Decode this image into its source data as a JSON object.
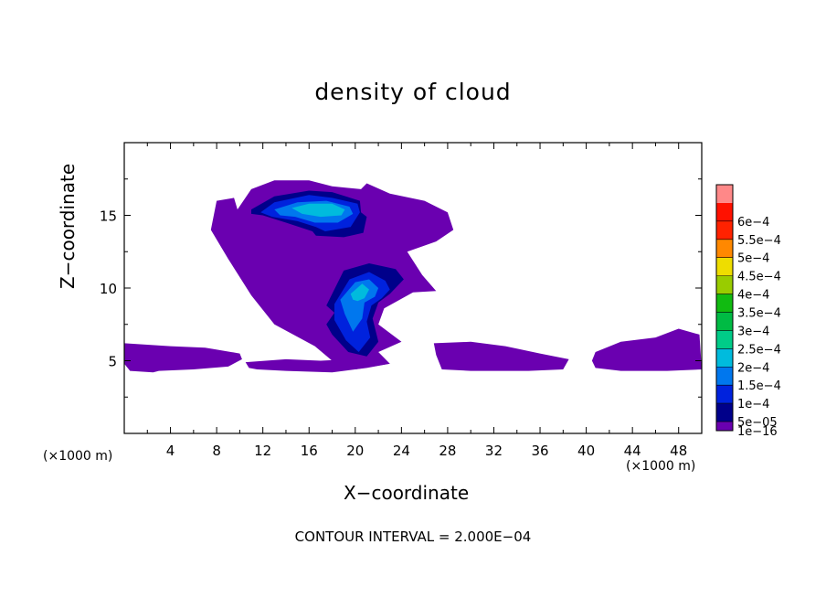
{
  "chart_data": {
    "type": "heatmap",
    "title": "density of cloud",
    "xlabel": "X−coordinate",
    "ylabel": "Z−coordinate",
    "x_unit": "(×1000 m)",
    "z_unit": "(×1000 m)",
    "footer": "CONTOUR INTERVAL = 2.000E−04",
    "xlim": [
      0,
      50
    ],
    "ylim": [
      0,
      20
    ],
    "x_ticks": [
      4,
      8,
      12,
      16,
      20,
      24,
      28,
      32,
      36,
      40,
      44,
      48
    ],
    "y_ticks": [
      5,
      10,
      15
    ],
    "colorbar": {
      "labels": [
        "1e−16",
        "5e−05",
        "1e−4",
        "1.5e−4",
        "2e−4",
        "2.5e−4",
        "3e−4",
        "3.5e−4",
        "4e−4",
        "4.5e−4",
        "5e−4",
        "5.5e−4",
        "6e−4"
      ],
      "colors": [
        "#6a00b0",
        "#00008a",
        "#0022dd",
        "#0077ee",
        "#00bbdd",
        "#00cc88",
        "#00bb44",
        "#11bb11",
        "#99cc00",
        "#eedd00",
        "#ff8800",
        "#ff2200",
        "#ff1100",
        "#ff8888"
      ]
    },
    "regions": [
      {
        "level": 0,
        "x": [
          9.8,
          11,
          13,
          16,
          18,
          20.5,
          21,
          23,
          26,
          28,
          28.5,
          27,
          24.5,
          25.8,
          27,
          25,
          22.5,
          22,
          24,
          22,
          23,
          20,
          18,
          16.5,
          13,
          11,
          9,
          7.5,
          8,
          9.5
        ],
        "z": [
          15.4,
          16.8,
          17.4,
          17.4,
          17,
          16.8,
          17.2,
          16.5,
          16,
          15.2,
          14,
          13.2,
          12.5,
          10.9,
          9.8,
          9.7,
          8.6,
          7.5,
          6.3,
          5.6,
          4.8,
          4.4,
          5,
          6,
          7.5,
          9.5,
          12,
          14,
          16,
          16.2
        ]
      },
      {
        "level": 0,
        "x": [
          0,
          4,
          7,
          10,
          10.2,
          9,
          6,
          3,
          2.5,
          0.5,
          0
        ],
        "z": [
          6.2,
          6,
          5.9,
          5.5,
          5.1,
          4.6,
          4.4,
          4.3,
          4.2,
          4.3,
          4.8
        ]
      },
      {
        "level": 0,
        "x": [
          10.5,
          14,
          17,
          22,
          23,
          21,
          18,
          14,
          11.5,
          10.8
        ],
        "z": [
          4.9,
          5.1,
          5.0,
          5.2,
          4.8,
          4.5,
          4.2,
          4.3,
          4.4,
          4.5
        ]
      },
      {
        "level": 0,
        "x": [
          26.8,
          30,
          33,
          36,
          38.5,
          38,
          35,
          30,
          27.5,
          27
        ],
        "z": [
          6.2,
          6.3,
          6.0,
          5.5,
          5.1,
          4.4,
          4.3,
          4.3,
          4.4,
          5.4
        ]
      },
      {
        "level": 0,
        "x": [
          40.8,
          43,
          46,
          48,
          49.8,
          50,
          47,
          43,
          40.8,
          40.5
        ],
        "z": [
          5.6,
          6.3,
          6.6,
          7.2,
          6.8,
          4.4,
          4.3,
          4.3,
          4.5,
          5.0
        ]
      },
      {
        "level": 1,
        "x": [
          11,
          13,
          16,
          18,
          20.4,
          20.5,
          21,
          20.7,
          19,
          16.6,
          16.3,
          14,
          12,
          11
        ],
        "z": [
          15.4,
          16.3,
          16.7,
          16.6,
          16.0,
          15.2,
          14.9,
          13.8,
          13.5,
          13.6,
          13.9,
          14.5,
          15.0,
          15.1
        ]
      },
      {
        "level": 1,
        "x": [
          17.5,
          19,
          21.2,
          23.5,
          24.2,
          23,
          22,
          21.5,
          22,
          21,
          19.4,
          18,
          17.5,
          18.2
        ],
        "z": [
          8.8,
          11.2,
          11.7,
          11.3,
          10.6,
          9.6,
          9.0,
          7.9,
          6.3,
          5.3,
          5.6,
          6.8,
          7.5,
          8.3
        ]
      },
      {
        "level": 2,
        "x": [
          11.8,
          13,
          16,
          18,
          20.2,
          20.4,
          19.6,
          17.4,
          16.6,
          15,
          12.8
        ],
        "z": [
          15.2,
          15.9,
          16.4,
          16.2,
          15.8,
          15.2,
          14.2,
          13.9,
          14.2,
          14.6,
          14.9
        ]
      },
      {
        "level": 2,
        "x": [
          18.2,
          19.5,
          21.2,
          22.6,
          23,
          22.3,
          21.4,
          21,
          21.3,
          20.3,
          19.2,
          18.2
        ],
        "z": [
          8.9,
          10.6,
          11.1,
          10.5,
          9.9,
          9.3,
          8.8,
          7.7,
          6.6,
          5.6,
          6.4,
          7.8
        ]
      },
      {
        "level": 3,
        "x": [
          13,
          15,
          17.5,
          19.5,
          19.8,
          18.5,
          16.5,
          14.8,
          13.5
        ],
        "z": [
          15.4,
          15.9,
          16.0,
          15.6,
          15.1,
          14.5,
          14.5,
          14.9,
          15.0
        ]
      },
      {
        "level": 3,
        "x": [
          18.7,
          20,
          21.2,
          22,
          21.7,
          20.8,
          20.6,
          19.8,
          19.1
        ],
        "z": [
          9.2,
          10.4,
          10.6,
          10.0,
          9.4,
          9.0,
          7.9,
          7.0,
          8.2
        ]
      },
      {
        "level": 4,
        "x": [
          14.5,
          16,
          18,
          19.1,
          18.8,
          17,
          15.4
        ],
        "z": [
          15.5,
          15.8,
          15.8,
          15.4,
          15.0,
          14.9,
          15.1
        ]
      },
      {
        "level": 4,
        "x": [
          19.6,
          20.6,
          21.2,
          20.8,
          20.2,
          19.8
        ],
        "z": [
          9.6,
          10.3,
          9.9,
          9.3,
          9.1,
          9.2
        ]
      }
    ]
  }
}
